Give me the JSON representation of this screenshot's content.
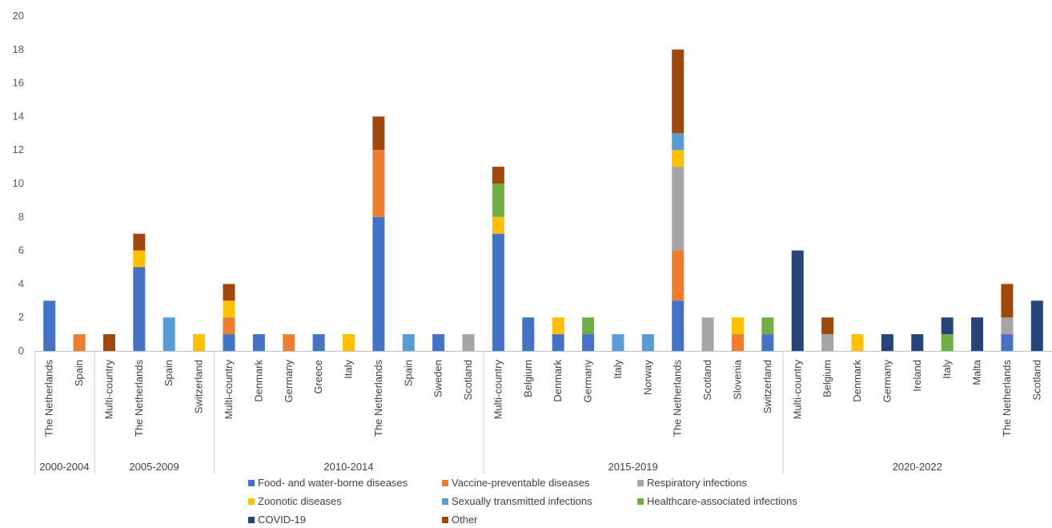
{
  "chart_data": {
    "type": "bar",
    "stacked": true,
    "ylim": [
      0,
      20
    ],
    "yticks": [
      0,
      2,
      4,
      6,
      8,
      10,
      12,
      14,
      16,
      18,
      20
    ],
    "grid": false,
    "legend_position": "bottom",
    "categories": [
      "The Netherlands",
      "Spain",
      "Multi-country",
      "The Netherlands",
      "Spain",
      "Switzerland",
      "Multi-country",
      "Denmark",
      "Germany",
      "Greece",
      "Italy",
      "The Netherlands",
      "Spain",
      "Sweden",
      "Scotland",
      "Multi-country",
      "Belgium",
      "Denmark",
      "Germany",
      "Italy",
      "Norway",
      "The Netherlands",
      "Scotland",
      "Slovenia",
      "Switzerland",
      "Multi-country",
      "Belgium",
      "Denmark",
      "Germany",
      "Ireland",
      "Italy",
      "Malta",
      "The Netherlands",
      "Scotland"
    ],
    "groups": [
      {
        "label": "2000-2004",
        "count": 2
      },
      {
        "label": "2005-2009",
        "count": 4
      },
      {
        "label": "2010-2014",
        "count": 9
      },
      {
        "label": "2015-2019",
        "count": 10
      },
      {
        "label": "2020-2022",
        "count": 9
      }
    ],
    "series": [
      {
        "name": "Food- and water-borne diseases",
        "color": "#4472C4",
        "values": [
          3,
          0,
          0,
          5,
          0,
          0,
          1,
          1,
          0,
          1,
          0,
          8,
          0,
          1,
          0,
          7,
          2,
          1,
          1,
          0,
          0,
          3,
          0,
          0,
          1,
          0,
          0,
          0,
          0,
          0,
          0,
          0,
          1,
          0
        ]
      },
      {
        "name": "Vaccine-preventable diseases",
        "color": "#ED7D31",
        "values": [
          0,
          1,
          0,
          0,
          0,
          0,
          1,
          0,
          1,
          0,
          0,
          4,
          0,
          0,
          0,
          0,
          0,
          0,
          0,
          0,
          0,
          3,
          0,
          1,
          0,
          0,
          0,
          0,
          0,
          0,
          0,
          0,
          0,
          0
        ]
      },
      {
        "name": "Respiratory infections",
        "color": "#A5A5A5",
        "values": [
          0,
          0,
          0,
          0,
          0,
          0,
          0,
          0,
          0,
          0,
          0,
          0,
          0,
          0,
          1,
          0,
          0,
          0,
          0,
          0,
          0,
          5,
          2,
          0,
          0,
          0,
          1,
          0,
          0,
          0,
          0,
          0,
          1,
          0
        ]
      },
      {
        "name": "Zoonotic diseases",
        "color": "#FFC000",
        "values": [
          0,
          0,
          0,
          1,
          0,
          1,
          1,
          0,
          0,
          0,
          1,
          0,
          0,
          0,
          0,
          1,
          0,
          1,
          0,
          0,
          0,
          1,
          0,
          1,
          0,
          0,
          0,
          1,
          0,
          0,
          0,
          0,
          0,
          0
        ]
      },
      {
        "name": "Sexually transmitted infections",
        "color": "#5B9BD5",
        "values": [
          0,
          0,
          0,
          0,
          2,
          0,
          0,
          0,
          0,
          0,
          0,
          0,
          1,
          0,
          0,
          0,
          0,
          0,
          0,
          1,
          1,
          1,
          0,
          0,
          0,
          0,
          0,
          0,
          0,
          0,
          0,
          0,
          0,
          0
        ]
      },
      {
        "name": "Healthcare-associated infections",
        "color": "#70AD47",
        "values": [
          0,
          0,
          0,
          0,
          0,
          0,
          0,
          0,
          0,
          0,
          0,
          0,
          0,
          0,
          0,
          2,
          0,
          0,
          1,
          0,
          0,
          0,
          0,
          0,
          1,
          0,
          0,
          0,
          0,
          0,
          1,
          0,
          0,
          0
        ]
      },
      {
        "name": "COVID-19",
        "color": "#264478",
        "values": [
          0,
          0,
          0,
          0,
          0,
          0,
          0,
          0,
          0,
          0,
          0,
          0,
          0,
          0,
          0,
          0,
          0,
          0,
          0,
          0,
          0,
          0,
          0,
          0,
          0,
          6,
          0,
          0,
          1,
          1,
          1,
          2,
          0,
          3
        ]
      },
      {
        "name": "Other",
        "color": "#9E480E",
        "values": [
          0,
          0,
          1,
          1,
          0,
          0,
          1,
          0,
          0,
          0,
          0,
          2,
          0,
          0,
          0,
          1,
          0,
          0,
          0,
          0,
          0,
          5,
          0,
          0,
          0,
          0,
          1,
          0,
          0,
          0,
          0,
          0,
          2,
          0
        ]
      }
    ]
  }
}
